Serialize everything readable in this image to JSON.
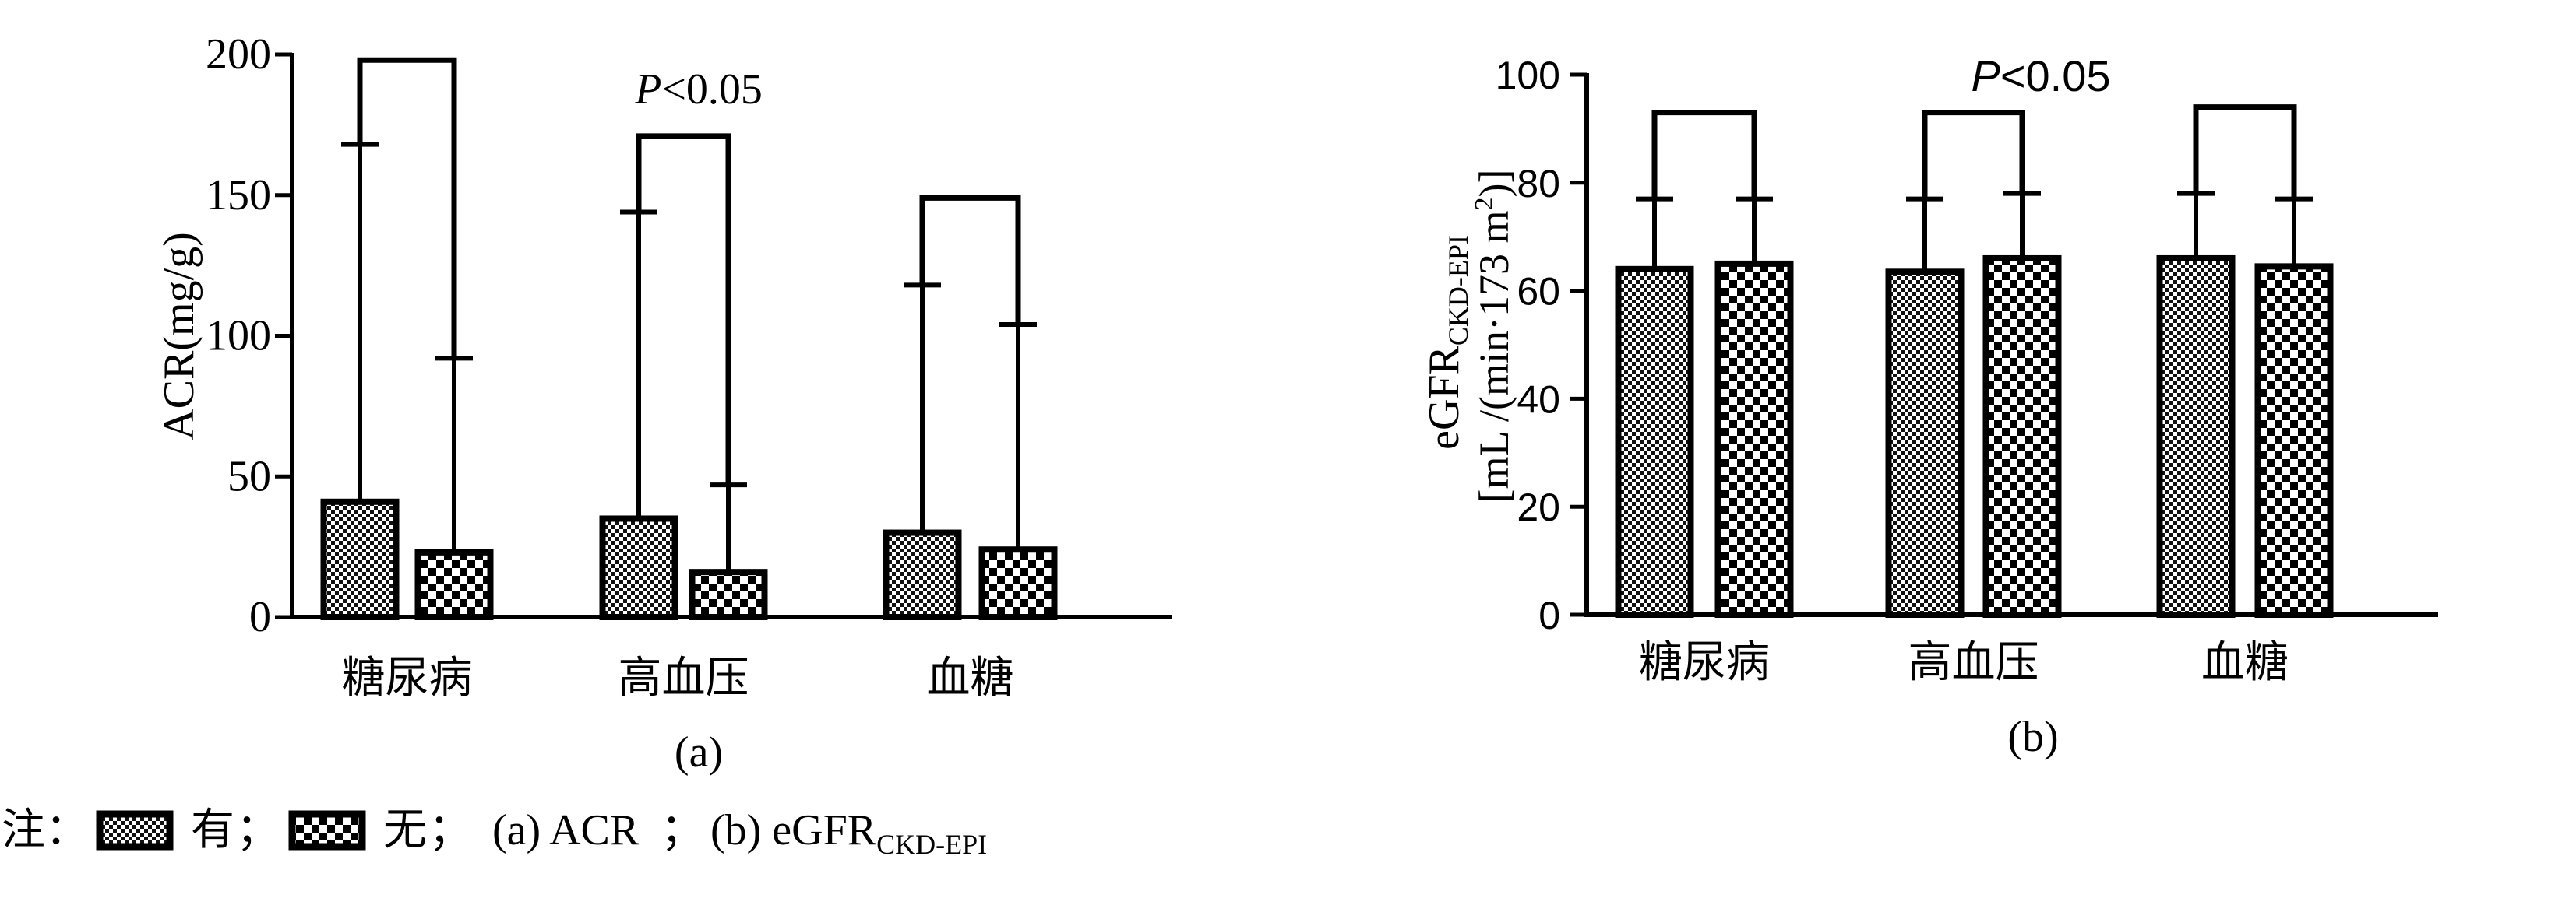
{
  "legend": {
    "prefix": "注：",
    "items": [
      {
        "label": "有",
        "pattern": "fine-check"
      },
      {
        "label": "无",
        "pattern": "coarse-check"
      }
    ],
    "sep": "；",
    "panel_a_desc": "(a) ACR",
    "panel_b_desc_main": "(b) eGFR",
    "panel_b_desc_sub": "CKD-EPI"
  },
  "chart_data": [
    {
      "type": "bar",
      "panel_label": "(a)",
      "ylabel": "ACR(mg/g)",
      "ylim": [
        0,
        200
      ],
      "yticks": [
        0,
        50,
        100,
        150,
        200
      ],
      "categories": [
        "糖尿病",
        "高血压",
        "血糖"
      ],
      "series": [
        {
          "name": "有",
          "values": [
            41,
            35,
            30
          ],
          "error_upper": [
            168,
            144,
            118
          ]
        },
        {
          "name": "无",
          "values": [
            23,
            16,
            24
          ],
          "error_upper": [
            92,
            47,
            104
          ]
        }
      ],
      "bracket_tops": [
        198,
        171,
        149
      ],
      "annotation": {
        "p_italic": "P",
        "p_rest": "<0.05",
        "category_index": 1
      },
      "grid": false
    },
    {
      "type": "bar",
      "panel_label": "(b)",
      "ylabel_main": "eGFR",
      "ylabel_sub": "CKD-EPI",
      "ylabel_line2": "[mL /(min·173 m",
      "ylabel_sup": "2",
      "ylabel_end": ")]",
      "ylim": [
        0,
        100
      ],
      "yticks": [
        0,
        20,
        40,
        60,
        80,
        100
      ],
      "categories": [
        "糖尿病",
        "高血压",
        "血糖"
      ],
      "series": [
        {
          "name": "有",
          "values": [
            64,
            63.5,
            66
          ],
          "error_upper": [
            77,
            77,
            78
          ]
        },
        {
          "name": "无",
          "values": [
            65,
            66,
            64.5
          ],
          "error_upper": [
            77,
            78,
            77
          ]
        }
      ],
      "bracket_tops": [
        93,
        93,
        94
      ],
      "annotation": {
        "p_italic": "P",
        "p_rest": "<0.05",
        "category_index": 1
      },
      "grid": false
    }
  ]
}
